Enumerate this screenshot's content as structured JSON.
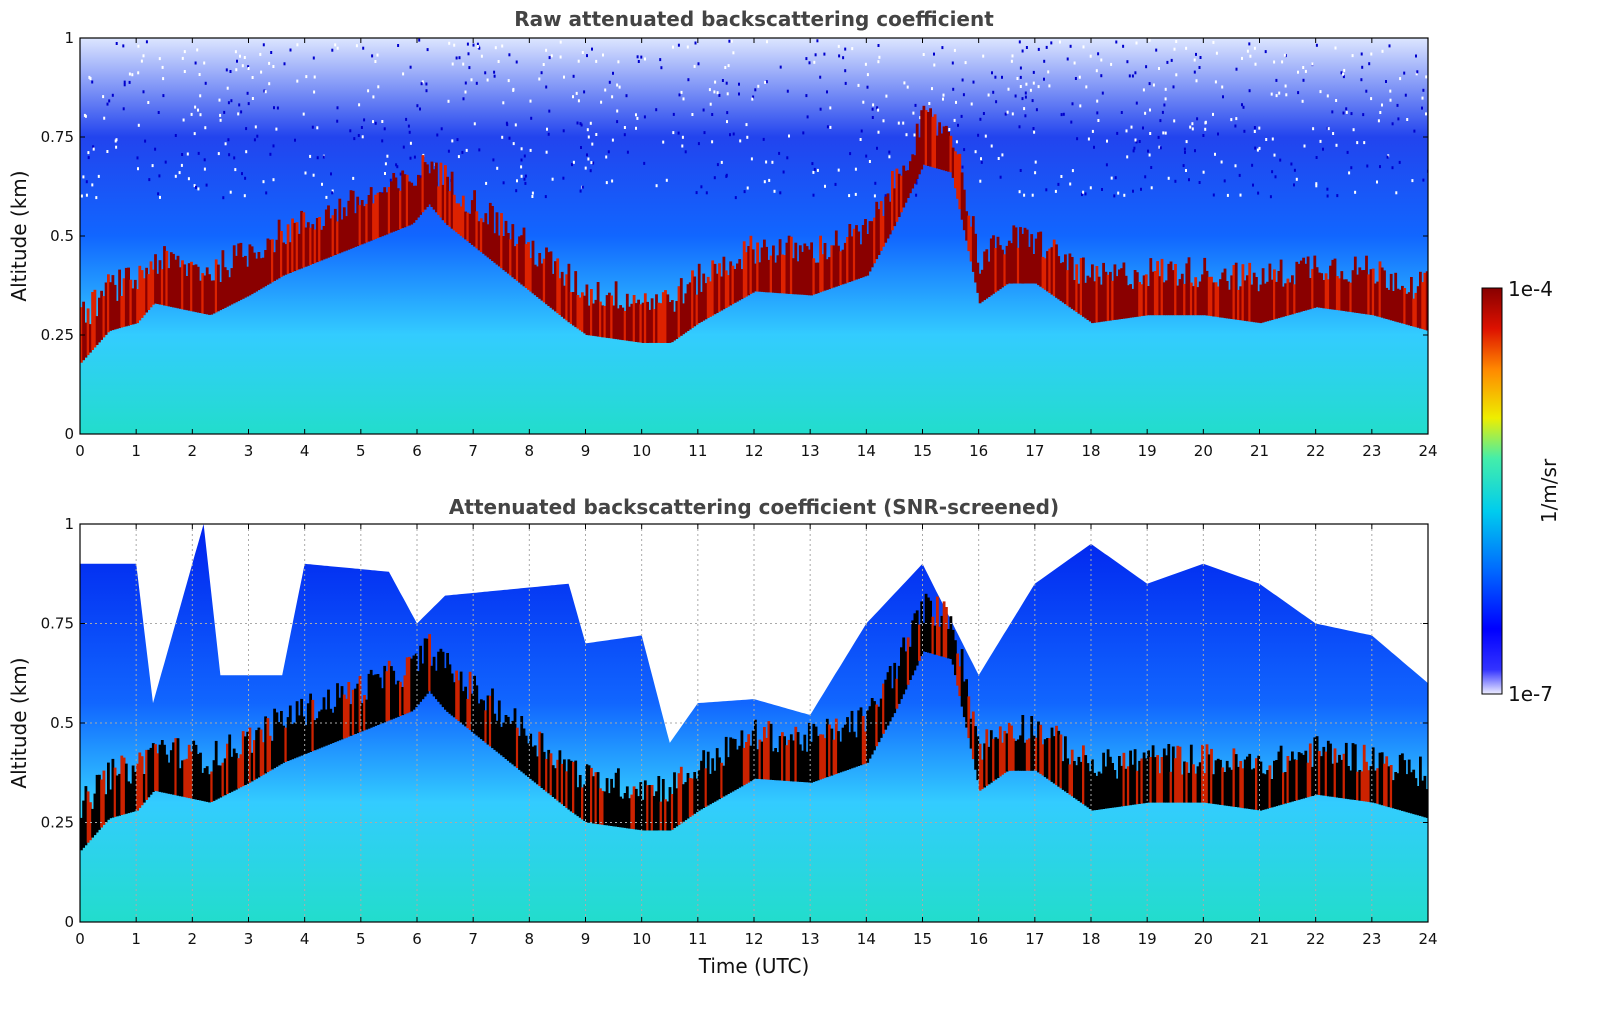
{
  "chart_data": [
    {
      "type": "heatmap",
      "title": "Raw attenuated backscattering coefficient",
      "xlabel": "",
      "ylabel": "Altitude (km)",
      "xlim": [
        0,
        24
      ],
      "ylim": [
        0,
        1
      ],
      "x_ticks": [
        "0",
        "1",
        "2",
        "3",
        "4",
        "5",
        "6",
        "7",
        "8",
        "9",
        "10",
        "11",
        "12",
        "13",
        "14",
        "15",
        "16",
        "17",
        "18",
        "19",
        "20",
        "21",
        "22",
        "23",
        "24"
      ],
      "y_ticks": [
        "0",
        "0.25",
        "0.5",
        "0.75",
        "1"
      ],
      "grid": false,
      "cloud_base_profile": {
        "time_utc": [
          0,
          0.5,
          1,
          1.3,
          2.3,
          3,
          3.6,
          5.9,
          6.2,
          6.5,
          8.7,
          9,
          10,
          10.5,
          11,
          12,
          13,
          14,
          14.5,
          15,
          15.5,
          16,
          16.5,
          17,
          18,
          19,
          20,
          21,
          22,
          23,
          24
        ],
        "altitude_km": [
          0.2,
          0.28,
          0.3,
          0.35,
          0.32,
          0.37,
          0.42,
          0.55,
          0.6,
          0.55,
          0.3,
          0.27,
          0.25,
          0.25,
          0.3,
          0.38,
          0.37,
          0.42,
          0.55,
          0.7,
          0.68,
          0.35,
          0.4,
          0.4,
          0.3,
          0.32,
          0.32,
          0.3,
          0.34,
          0.32,
          0.28
        ]
      }
    },
    {
      "type": "heatmap",
      "title": "Attenuated backscattering coefficient (SNR-screened)",
      "xlabel": "Time (UTC)",
      "ylabel": "Altitude (km)",
      "xlim": [
        0,
        24
      ],
      "ylim": [
        0,
        1
      ],
      "x_ticks": [
        "0",
        "1",
        "2",
        "3",
        "4",
        "5",
        "6",
        "7",
        "8",
        "9",
        "10",
        "11",
        "12",
        "13",
        "14",
        "15",
        "16",
        "17",
        "18",
        "19",
        "20",
        "21",
        "22",
        "23",
        "24"
      ],
      "y_ticks": [
        "0",
        "0.25",
        "0.5",
        "0.75",
        "1"
      ],
      "grid": true,
      "screened_top_profile": {
        "time_utc": [
          0,
          1,
          1.3,
          2.2,
          2.5,
          3.6,
          4,
          5.5,
          6,
          6.5,
          8.7,
          9,
          10,
          10.5,
          11,
          12,
          13,
          14,
          15,
          16,
          17,
          18,
          19,
          20,
          21,
          22,
          23,
          24
        ],
        "altitude_km": [
          0.9,
          0.9,
          0.55,
          1.0,
          0.62,
          0.62,
          0.9,
          0.88,
          0.75,
          0.82,
          0.85,
          0.7,
          0.72,
          0.45,
          0.55,
          0.56,
          0.52,
          0.75,
          0.9,
          0.62,
          0.85,
          0.95,
          0.85,
          0.9,
          0.85,
          0.75,
          0.72,
          0.6
        ]
      }
    }
  ],
  "colorbar": {
    "label": "1/m/sr",
    "max_label": "1e-4",
    "min_label": "1e-7",
    "scale": "log",
    "range": [
      1e-07,
      0.0001
    ],
    "colormap": [
      "#eeeeff",
      "#0000ff",
      "#0066ff",
      "#00ccee",
      "#66ee88",
      "#eeee00",
      "#ff8800",
      "#dd1100",
      "#880000"
    ]
  }
}
